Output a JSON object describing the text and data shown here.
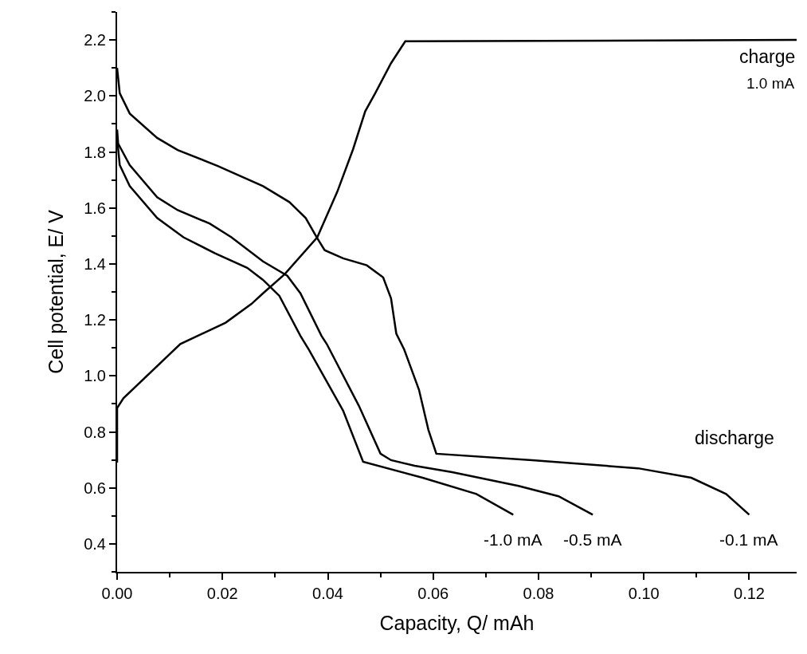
{
  "chart_data": {
    "type": "line",
    "xlabel": "Capacity, Q/ mAh",
    "ylabel": "Cell potential, E/ V",
    "xlim": [
      0,
      0.129
    ],
    "ylim": [
      0.3,
      2.3
    ],
    "xticks": [
      {
        "value": 0,
        "label": "0.00"
      },
      {
        "value": 0.02,
        "label": "0.02"
      },
      {
        "value": 0.04,
        "label": "0.04"
      },
      {
        "value": 0.06,
        "label": "0.06"
      },
      {
        "value": 0.08,
        "label": "0.08"
      },
      {
        "value": 0.1,
        "label": "0.10"
      },
      {
        "value": 0.12,
        "label": "0.12"
      }
    ],
    "yticks": [
      0.4,
      0.6,
      0.8,
      {
        "value": 1,
        "label": "1.0"
      },
      1.2,
      1.4,
      1.6,
      1.8,
      {
        "value": 2,
        "label": "2.0"
      },
      2.2
    ],
    "grid": false,
    "legend": false,
    "marker": "none",
    "line_style": "solid",
    "series": [
      {
        "name": "1.0 mA",
        "color": "#000000",
        "x": [
          0,
          0,
          0.0012,
          0.012,
          0.0206,
          0.0255,
          0.0277,
          0.0318,
          0.038,
          0.0418,
          0.0448,
          0.0471,
          0.049,
          0.052,
          0.0547,
          0.129
        ],
        "values": [
          0.69,
          0.885,
          0.92,
          1.114,
          1.19,
          1.257,
          1.295,
          1.363,
          1.495,
          1.658,
          1.81,
          1.945,
          2.01,
          2.117,
          2.195,
          2.2
        ]
      },
      {
        "name": "-0.1 mA",
        "color": "#000000",
        "x": [
          0,
          0.0005,
          0.0024,
          0.0076,
          0.0115,
          0.0191,
          0.0277,
          0.0327,
          0.0358,
          0.0379,
          0.0394,
          0.0429,
          0.0474,
          0.0505,
          0.052,
          0.053,
          0.0545,
          0.0573,
          0.0591,
          0.0606,
          0.0788,
          0.0989,
          0.109,
          0.1156,
          0.12
        ],
        "values": [
          2.1,
          2.01,
          1.937,
          1.85,
          1.807,
          1.75,
          1.678,
          1.621,
          1.564,
          1.495,
          1.449,
          1.42,
          1.395,
          1.352,
          1.277,
          1.151,
          1.094,
          0.951,
          0.807,
          0.722,
          0.699,
          0.67,
          0.636,
          0.578,
          0.504
        ]
      },
      {
        "name": "-0.5 mA",
        "color": "#000000",
        "x": [
          0,
          0.0002,
          0.0024,
          0.0076,
          0.0115,
          0.0176,
          0.0217,
          0.0277,
          0.0323,
          0.0348,
          0.0388,
          0.0398,
          0.0459,
          0.05,
          0.052,
          0.0565,
          0.0636,
          0.0762,
          0.0838,
          0.0903
        ],
        "values": [
          1.88,
          1.83,
          1.753,
          1.638,
          1.592,
          1.544,
          1.495,
          1.409,
          1.358,
          1.295,
          1.143,
          1.114,
          0.893,
          0.722,
          0.699,
          0.679,
          0.656,
          0.607,
          0.57,
          0.504
        ]
      },
      {
        "name": "-1.0 mA",
        "color": "#000000",
        "x": [
          0,
          0.0005,
          0.0024,
          0.0076,
          0.0126,
          0.0186,
          0.0247,
          0.0277,
          0.0308,
          0.0348,
          0.0364,
          0.0429,
          0.0467,
          0.058,
          0.0682,
          0.0752
        ],
        "values": [
          1.85,
          1.753,
          1.678,
          1.564,
          1.495,
          1.438,
          1.386,
          1.343,
          1.286,
          1.143,
          1.094,
          0.876,
          0.693,
          0.636,
          0.578,
          0.504
        ]
      }
    ],
    "annotations": [
      "charge",
      "discharge"
    ]
  }
}
